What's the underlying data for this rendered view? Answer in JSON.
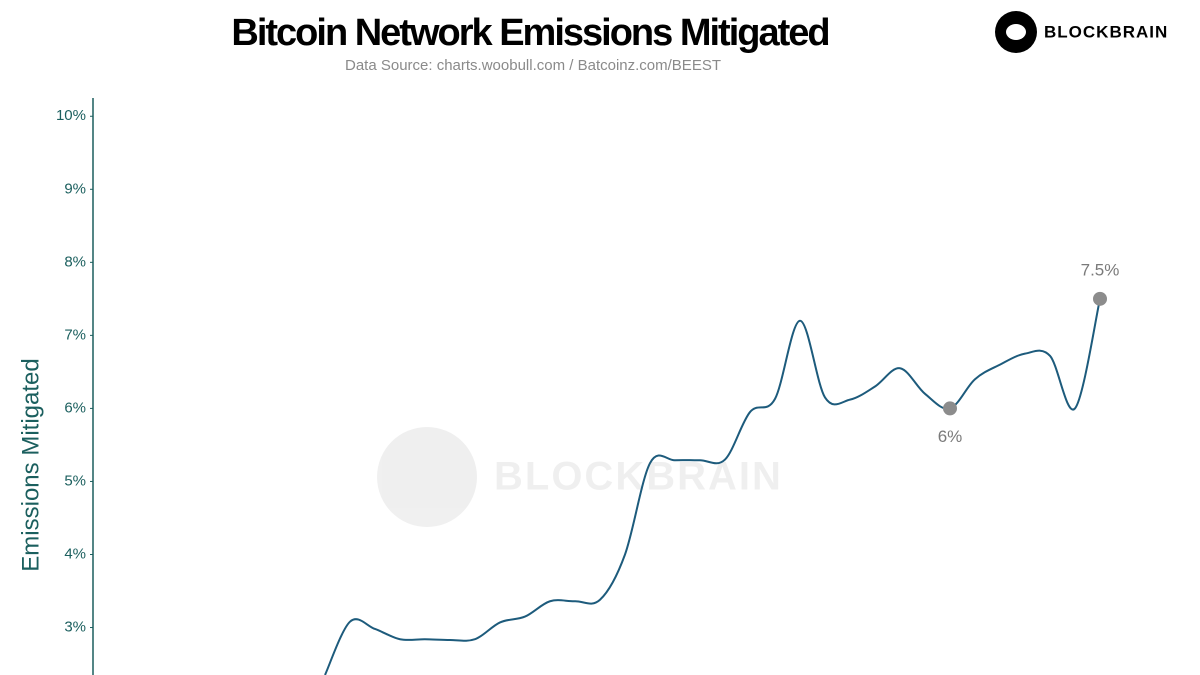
{
  "chart_data": {
    "type": "line",
    "title": "Bitcoin Network Emissions Mitigated",
    "subtitle": "Data Source: charts.woobull.com / Batcoinz.com/BEEST",
    "logo": "BLOCKBRAIN",
    "y_label": "Emissions Mitigated",
    "categories": [
      null,
      null,
      null,
      null,
      null,
      null,
      null,
      null,
      null,
      null,
      null,
      null,
      null,
      null,
      null,
      null,
      null,
      null,
      null,
      null,
      null,
      null,
      null,
      null,
      null,
      null,
      null,
      null,
      null,
      null,
      null,
      null
    ],
    "series": [
      {
        "name": "Emissions Mitigated",
        "color": "#1d5b7c",
        "values": [
          2.35,
          3.08,
          2.98,
          2.84,
          2.84,
          2.83,
          2.84,
          3.07,
          3.15,
          3.36,
          3.36,
          3.38,
          4.0,
          5.25,
          5.29,
          5.29,
          5.3,
          5.95,
          6.13,
          7.2,
          6.15,
          6.12,
          6.3,
          6.55,
          6.2,
          6.0,
          6.4,
          6.6,
          6.75,
          6.72,
          6.0,
          7.5
        ],
        "value_labels": [
          null,
          null,
          null,
          null,
          null,
          null,
          null,
          null,
          null,
          null,
          null,
          null,
          null,
          null,
          null,
          null,
          null,
          null,
          null,
          null,
          null,
          null,
          null,
          null,
          null,
          "6%",
          null,
          null,
          null,
          null,
          null,
          "7.5%"
        ]
      }
    ],
    "ylim": [
      2.35,
      10.25
    ],
    "yticks": [
      {
        "value": 3,
        "label": "3%"
      },
      {
        "value": 4,
        "label": "4%"
      },
      {
        "value": 5,
        "label": "5%"
      },
      {
        "value": 6,
        "label": "6%"
      },
      {
        "value": 7,
        "label": "7%"
      },
      {
        "value": 8,
        "label": "8%"
      },
      {
        "value": 9,
        "label": "9%"
      },
      {
        "value": 10,
        "label": "10%"
      }
    ],
    "grid": false
  }
}
